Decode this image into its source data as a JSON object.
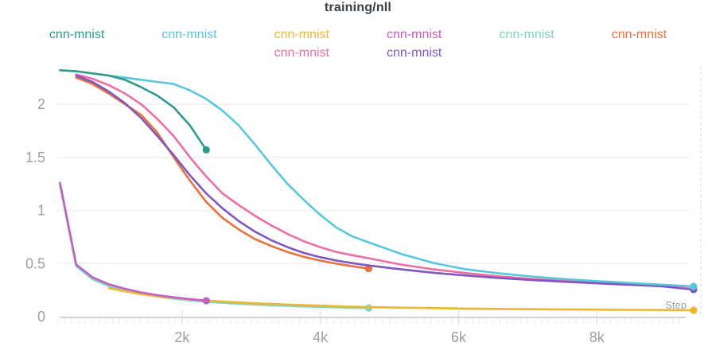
{
  "header": {
    "title": "training/nll"
  },
  "legend": {
    "items": [
      {
        "label": "cnn-mnist",
        "color": "#2e9a8d"
      },
      {
        "label": "cnn-mnist",
        "color": "#57c7dd"
      },
      {
        "label": "cnn-mnist",
        "color": "#edb732"
      },
      {
        "label": "cnn-mnist",
        "color": "#c35ec4"
      },
      {
        "label": "cnn-mnist",
        "color": "#80d4bf"
      },
      {
        "label": "cnn-mnist",
        "color": "#e8713c"
      },
      {
        "label": "cnn-mnist",
        "color": "#ef6da4"
      },
      {
        "label": "cnn-mnist",
        "color": "#7e57c2"
      }
    ]
  },
  "colors": {
    "axis_line": "#d3d6d9",
    "major_tick": "#e2e4e7",
    "minor_tick": "#ededee",
    "gridline": "#f0f1f2",
    "tick_label": "#9aa0a6",
    "cursor_line": "#e3e5e7",
    "title_text": "#3b4045"
  },
  "chart_data": {
    "type": "line",
    "title": "training/nll",
    "grid": "horizontal",
    "legend_position": "top",
    "x_axis": {
      "title": "Step",
      "range": [
        0,
        9700
      ],
      "ticks": [
        2000,
        4000,
        6000,
        8000
      ],
      "tick_labels": [
        "2k",
        "4k",
        "6k",
        "8k"
      ]
    },
    "y_axis": {
      "title": "",
      "range": [
        0,
        2.35
      ],
      "ticks": [
        0,
        0.5,
        1,
        1.5,
        2
      ],
      "tick_labels": [
        "0",
        "0.5",
        "1",
        "1.5",
        "2"
      ]
    },
    "cursor_step": 9500,
    "series": [
      {
        "name": "cnn-mnist",
        "color": "#80d4bf",
        "end_dot": true,
        "points": [
          [
            235,
            1.24
          ],
          [
            470,
            0.475
          ],
          [
            705,
            0.352
          ],
          [
            940,
            0.288
          ],
          [
            1175,
            0.246
          ],
          [
            1410,
            0.214
          ],
          [
            1645,
            0.189
          ],
          [
            1880,
            0.169
          ],
          [
            2115,
            0.153
          ],
          [
            2350,
            0.14
          ],
          [
            2585,
            0.13
          ],
          [
            2820,
            0.121
          ],
          [
            3055,
            0.114
          ],
          [
            3290,
            0.107
          ],
          [
            3525,
            0.101
          ],
          [
            3760,
            0.096
          ],
          [
            3995,
            0.092
          ],
          [
            4230,
            0.088
          ],
          [
            4465,
            0.084
          ],
          [
            4700,
            0.081
          ]
        ]
      },
      {
        "name": "cnn-mnist",
        "color": "#edb732",
        "end_dot": true,
        "points": [
          [
            940,
            0.268
          ],
          [
            1175,
            0.238
          ],
          [
            1410,
            0.212
          ],
          [
            1645,
            0.192
          ],
          [
            1880,
            0.176
          ],
          [
            2115,
            0.163
          ],
          [
            2350,
            0.152
          ],
          [
            2585,
            0.142
          ],
          [
            2820,
            0.134
          ],
          [
            3055,
            0.126
          ],
          [
            3290,
            0.119
          ],
          [
            3525,
            0.113
          ],
          [
            3760,
            0.108
          ],
          [
            3995,
            0.103
          ],
          [
            4230,
            0.098
          ],
          [
            4465,
            0.094
          ],
          [
            4700,
            0.091
          ],
          [
            5170,
            0.085
          ],
          [
            5640,
            0.08
          ],
          [
            6110,
            0.076
          ],
          [
            6580,
            0.073
          ],
          [
            7050,
            0.07
          ],
          [
            7520,
            0.068
          ],
          [
            7990,
            0.066
          ],
          [
            8460,
            0.064
          ],
          [
            8930,
            0.062
          ],
          [
            9400,
            0.06
          ]
        ]
      },
      {
        "name": "cnn-mnist",
        "color": "#e8713c",
        "end_dot": true,
        "points": [
          [
            470,
            2.25
          ],
          [
            705,
            2.19
          ],
          [
            940,
            2.1
          ],
          [
            1175,
            2.0
          ],
          [
            1410,
            1.9
          ],
          [
            1645,
            1.73
          ],
          [
            1880,
            1.5
          ],
          [
            2115,
            1.28
          ],
          [
            2350,
            1.08
          ],
          [
            2585,
            0.93
          ],
          [
            2820,
            0.82
          ],
          [
            3055,
            0.73
          ],
          [
            3290,
            0.665
          ],
          [
            3525,
            0.608
          ],
          [
            3760,
            0.563
          ],
          [
            3995,
            0.528
          ],
          [
            4230,
            0.499
          ],
          [
            4465,
            0.474
          ],
          [
            4700,
            0.452
          ]
        ]
      },
      {
        "name": "cnn-mnist",
        "color": "#ef6da4",
        "end_dot": true,
        "points": [
          [
            470,
            2.28
          ],
          [
            705,
            2.24
          ],
          [
            940,
            2.18
          ],
          [
            1175,
            2.1
          ],
          [
            1410,
            2.0
          ],
          [
            1645,
            1.86
          ],
          [
            1880,
            1.7
          ],
          [
            2115,
            1.5
          ],
          [
            2350,
            1.32
          ],
          [
            2585,
            1.16
          ],
          [
            2820,
            1.05
          ],
          [
            3055,
            0.95
          ],
          [
            3290,
            0.86
          ],
          [
            3525,
            0.78
          ],
          [
            3760,
            0.71
          ],
          [
            3995,
            0.655
          ],
          [
            4230,
            0.61
          ],
          [
            4465,
            0.578
          ],
          [
            4700,
            0.55
          ],
          [
            5170,
            0.49
          ],
          [
            5640,
            0.445
          ],
          [
            6110,
            0.41
          ],
          [
            6580,
            0.38
          ],
          [
            7050,
            0.356
          ],
          [
            7520,
            0.337
          ],
          [
            7990,
            0.32
          ],
          [
            8460,
            0.305
          ],
          [
            8930,
            0.292
          ],
          [
            9400,
            0.28
          ]
        ]
      },
      {
        "name": "cnn-mnist",
        "color": "#7e57c2",
        "end_dot": true,
        "points": [
          [
            470,
            2.27
          ],
          [
            705,
            2.21
          ],
          [
            940,
            2.12
          ],
          [
            1175,
            2.01
          ],
          [
            1410,
            1.87
          ],
          [
            1645,
            1.7
          ],
          [
            1880,
            1.52
          ],
          [
            2115,
            1.33
          ],
          [
            2350,
            1.16
          ],
          [
            2585,
            1.02
          ],
          [
            2820,
            0.9
          ],
          [
            3055,
            0.8
          ],
          [
            3290,
            0.72
          ],
          [
            3525,
            0.655
          ],
          [
            3760,
            0.6
          ],
          [
            3995,
            0.56
          ],
          [
            4230,
            0.528
          ],
          [
            4465,
            0.503
          ],
          [
            4700,
            0.482
          ],
          [
            5170,
            0.445
          ],
          [
            5640,
            0.413
          ],
          [
            6110,
            0.387
          ],
          [
            6580,
            0.364
          ],
          [
            7050,
            0.345
          ],
          [
            7520,
            0.329
          ],
          [
            7990,
            0.314
          ],
          [
            8460,
            0.3
          ],
          [
            8930,
            0.286
          ],
          [
            9400,
            0.255
          ]
        ]
      },
      {
        "name": "cnn-mnist",
        "color": "#57c7dd",
        "end_dot": true,
        "points": [
          [
            940,
            2.27
          ],
          [
            1175,
            2.25
          ],
          [
            1410,
            2.23
          ],
          [
            1645,
            2.21
          ],
          [
            1880,
            2.19
          ],
          [
            2115,
            2.13
          ],
          [
            2350,
            2.05
          ],
          [
            2585,
            1.94
          ],
          [
            2820,
            1.8
          ],
          [
            3055,
            1.62
          ],
          [
            3290,
            1.43
          ],
          [
            3525,
            1.25
          ],
          [
            3760,
            1.1
          ],
          [
            3995,
            0.96
          ],
          [
            4230,
            0.84
          ],
          [
            4465,
            0.755
          ],
          [
            4700,
            0.7
          ],
          [
            5170,
            0.59
          ],
          [
            5640,
            0.505
          ],
          [
            6110,
            0.445
          ],
          [
            6580,
            0.408
          ],
          [
            7050,
            0.378
          ],
          [
            7520,
            0.354
          ],
          [
            7990,
            0.335
          ],
          [
            8460,
            0.318
          ],
          [
            8930,
            0.301
          ],
          [
            9400,
            0.285
          ]
        ]
      },
      {
        "name": "cnn-mnist",
        "color": "#c35ec4",
        "end_dot": true,
        "points": [
          [
            235,
            1.26
          ],
          [
            470,
            0.49
          ],
          [
            705,
            0.37
          ],
          [
            940,
            0.305
          ],
          [
            1175,
            0.262
          ],
          [
            1410,
            0.228
          ],
          [
            1645,
            0.202
          ],
          [
            1880,
            0.182
          ],
          [
            2115,
            0.165
          ],
          [
            2350,
            0.15
          ]
        ]
      },
      {
        "name": "cnn-mnist",
        "color": "#2e9a8d",
        "end_dot": true,
        "points": [
          [
            235,
            2.32
          ],
          [
            470,
            2.31
          ],
          [
            705,
            2.29
          ],
          [
            940,
            2.27
          ],
          [
            1175,
            2.23
          ],
          [
            1410,
            2.16
          ],
          [
            1645,
            2.08
          ],
          [
            1880,
            1.97
          ],
          [
            2115,
            1.8
          ],
          [
            2350,
            1.57
          ]
        ]
      }
    ]
  }
}
